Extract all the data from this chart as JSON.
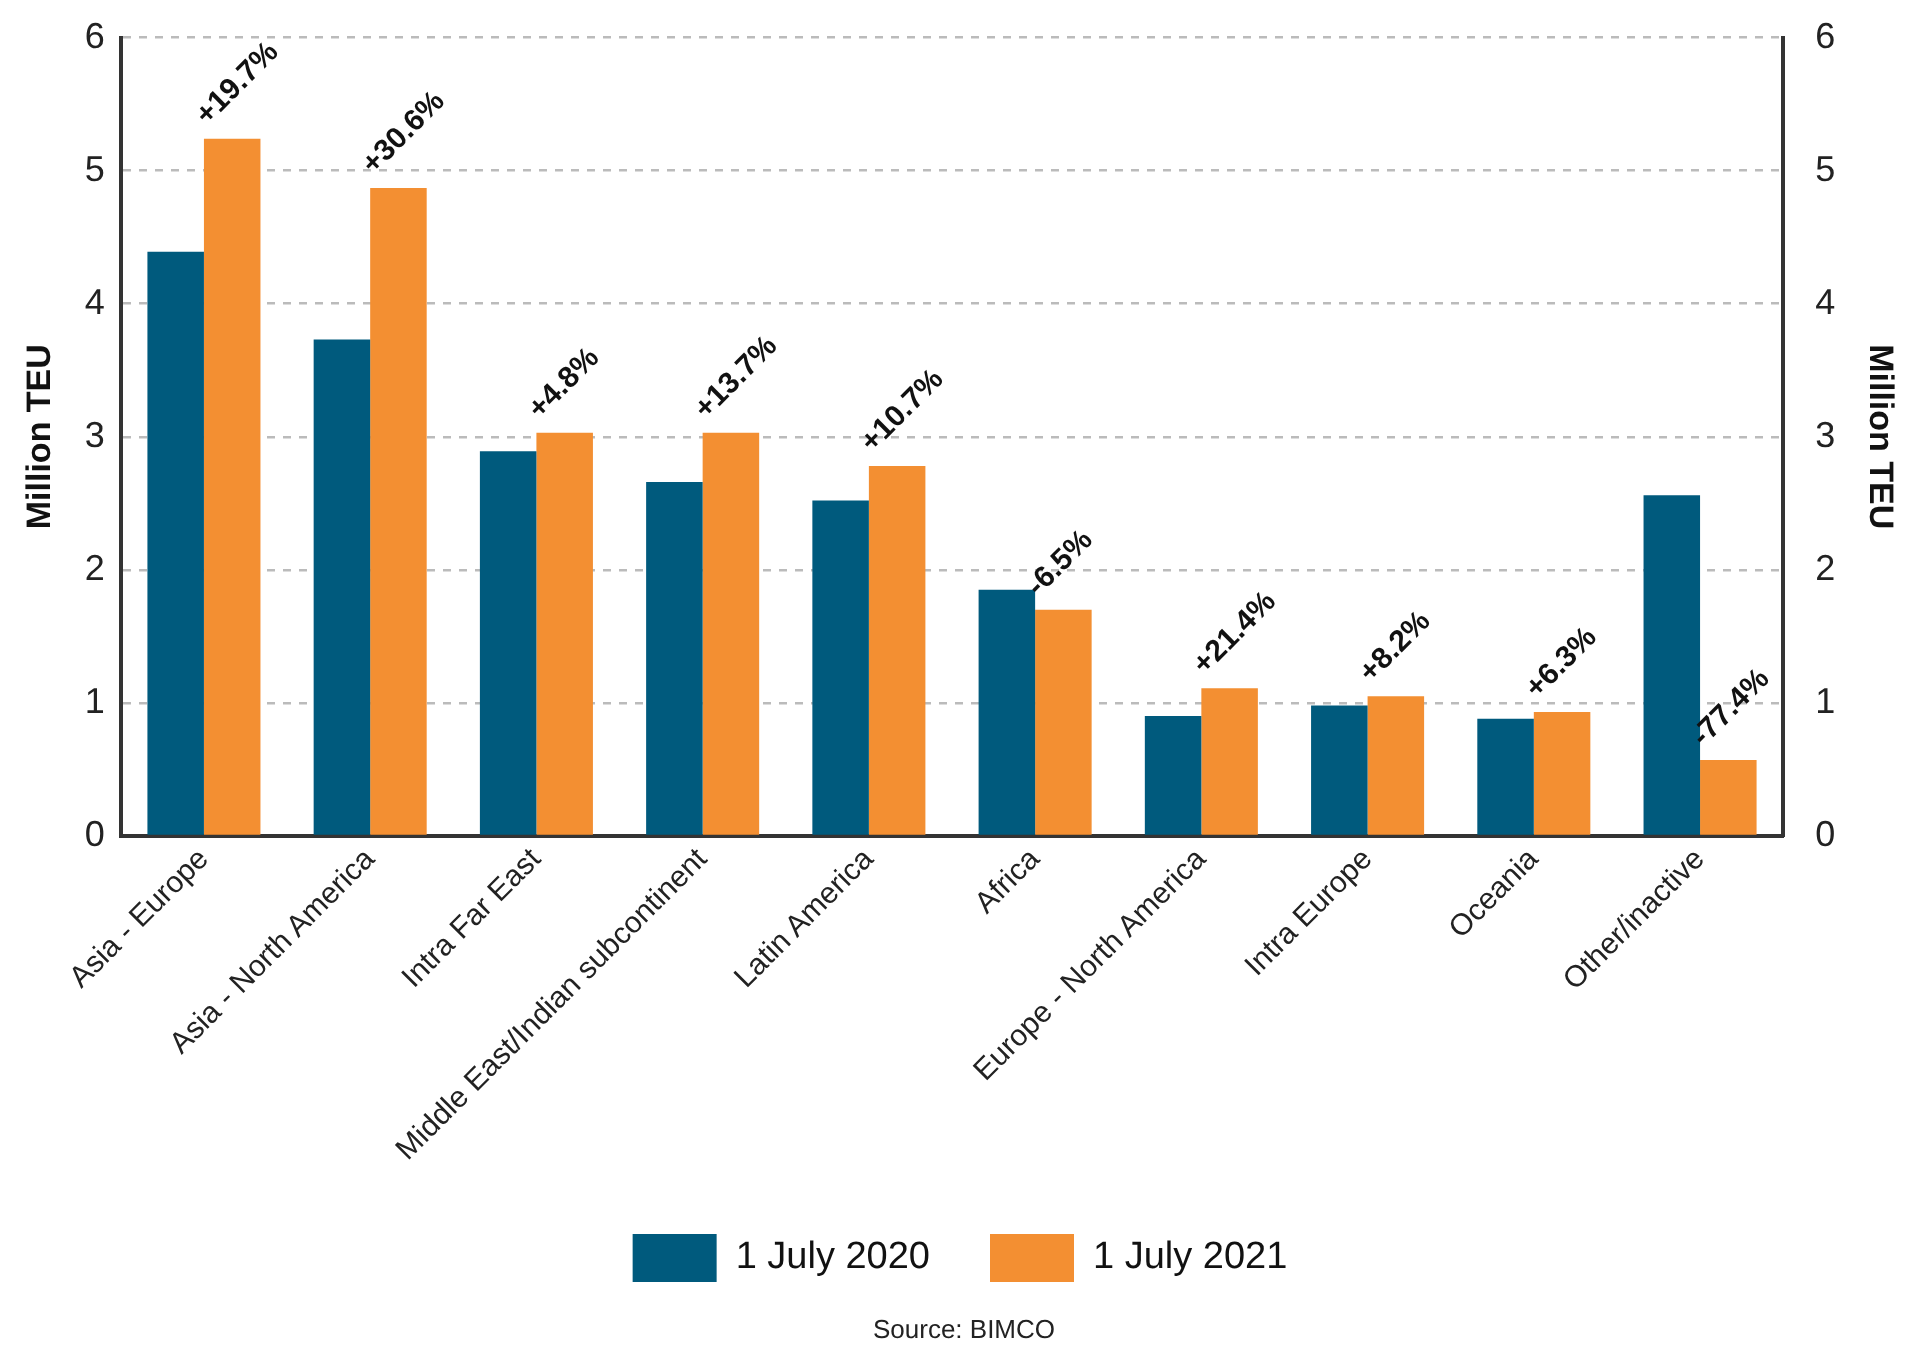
{
  "chart_data": {
    "type": "bar",
    "categories": [
      "Asia - Europe",
      "Asia - North America",
      "Intra Far East",
      "Middle East/Indian subcontinent",
      "Latin America",
      "Africa",
      "Europe - North America",
      "Intra Europe",
      "Oceania",
      "Other/inactive"
    ],
    "series": [
      {
        "name": "1 July 2020",
        "color": "#005a7d",
        "values": [
          4.39,
          3.73,
          2.89,
          2.66,
          2.52,
          1.85,
          0.9,
          0.98,
          0.88,
          2.56
        ]
      },
      {
        "name": "1 July 2021",
        "color": "#f38f32",
        "values": [
          5.24,
          4.87,
          3.03,
          3.03,
          2.78,
          1.7,
          1.11,
          1.05,
          0.93,
          0.57
        ]
      }
    ],
    "ylabel": "Million TEU",
    "y2label": "Million TEU",
    "ylim": [
      0,
      6
    ],
    "yticks": [
      0,
      1,
      2,
      3,
      4,
      5,
      6
    ],
    "y2lim": [
      0,
      6
    ],
    "y2ticks": [
      0,
      1,
      2,
      3,
      4,
      5,
      6
    ],
    "grid": "y",
    "legend": "bottom",
    "annotations": [
      {
        "text": "+19.7%",
        "x": "Asia - Europe",
        "y": 5.24
      },
      {
        "text": "+30.6%",
        "x": "Asia - North America",
        "y": 4.87
      },
      {
        "text": "+4.8%",
        "x": "Intra Far East",
        "y": 3.03
      },
      {
        "text": "+13.7%",
        "x": "Middle East/Indian subcontinent",
        "y": 3.03
      },
      {
        "text": "+10.7%",
        "x": "Latin America",
        "y": 2.78
      },
      {
        "text": "-6.5%",
        "x": "Africa",
        "y": 1.7
      },
      {
        "text": "+21.4%",
        "x": "Europe - North America",
        "y": 1.11
      },
      {
        "text": "+8.2%",
        "x": "Intra Europe",
        "y": 1.05
      },
      {
        "text": "+6.3%",
        "x": "Oceania",
        "y": 0.93
      },
      {
        "text": "-77.4%",
        "x": "Other/inactive",
        "y": 0.57
      },
      "Source: BIMCO"
    ]
  }
}
